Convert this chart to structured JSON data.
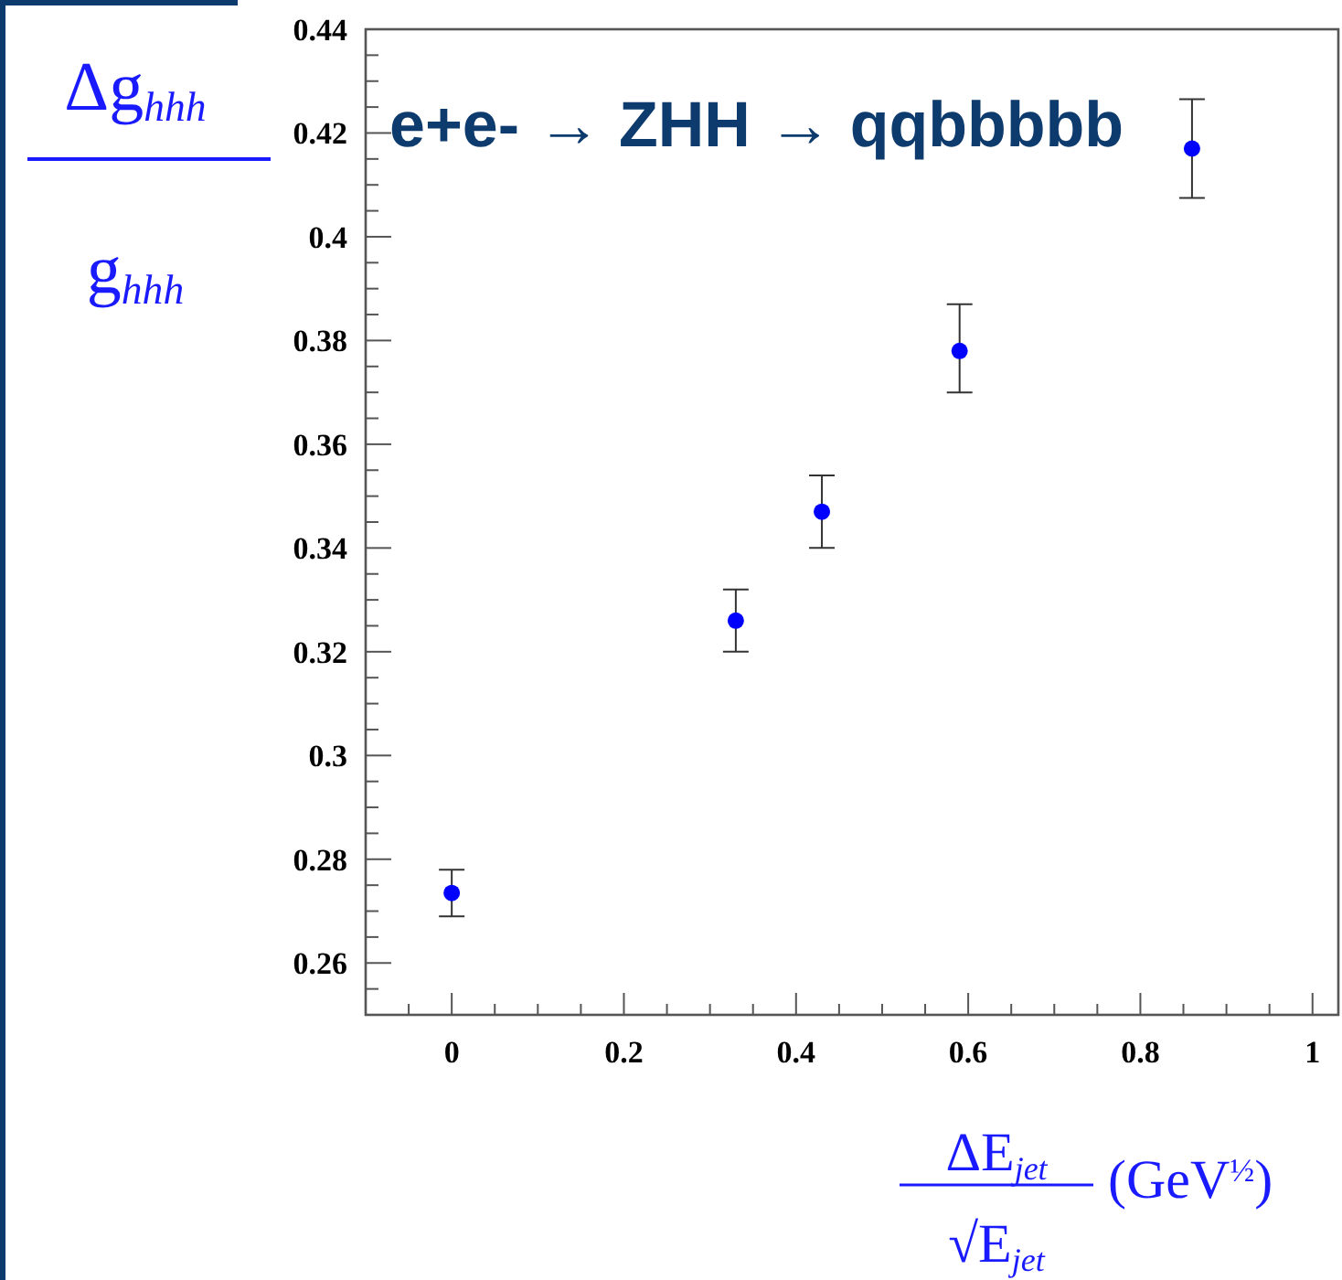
{
  "chart_data": {
    "type": "scatter",
    "title": "e+e- → ZHH → qqbbbbb",
    "xlabel": "ΔE$_{jet}$ √E$_{jet}$ (GeV$^{½}$)",
    "ylabel": "Δg$_{hhh}$ g$_{hhh}$",
    "x": [
      0,
      0.33,
      0.43,
      0.59,
      0.86
    ],
    "series": [
      {
        "color": "#0000ff",
        "values": [
          0.2735,
          0.326,
          0.347,
          0.378,
          0.417
        ],
        "errors": [
          0.0045,
          0.006,
          0.007,
          [
            0.37,
            0.387
          ],
          0.0095
        ]
      }
    ],
    "marker": "circle",
    "xlim": [
      -0.1,
      1.03
    ],
    "ylim": [
      0.25,
      0.44
    ],
    "xticks": [
      {
        "value": -0.05,
        "label": null
      },
      0,
      {
        "value": 0.05,
        "label": null
      },
      {
        "value": 0.1,
        "label": null
      },
      {
        "value": 0.15,
        "label": null
      },
      0.2,
      {
        "value": 0.25,
        "label": null
      },
      {
        "value": 0.3,
        "label": null
      },
      {
        "value": 0.35,
        "label": null
      },
      0.4,
      {
        "value": 0.45,
        "label": null
      },
      {
        "value": 0.5,
        "label": null
      },
      {
        "value": 0.55,
        "label": null
      },
      0.6,
      {
        "value": 0.65,
        "label": null
      },
      {
        "value": 0.7,
        "label": null
      },
      {
        "value": 0.75,
        "label": null
      },
      0.8,
      {
        "value": 0.85,
        "label": null
      },
      {
        "value": 0.9,
        "label": null
      },
      {
        "value": 0.95,
        "label": null
      },
      1
    ],
    "yticks": [
      {
        "value": 0.255,
        "label": null
      },
      0.26,
      {
        "value": 0.265,
        "label": null
      },
      {
        "value": 0.27,
        "label": null
      },
      {
        "value": 0.275,
        "label": null
      },
      0.28,
      {
        "value": 0.285,
        "label": null
      },
      {
        "value": 0.29,
        "label": null
      },
      {
        "value": 0.295,
        "label": null
      },
      0.3,
      {
        "value": 0.305,
        "label": null
      },
      {
        "value": 0.31,
        "label": null
      },
      {
        "value": 0.315,
        "label": null
      },
      0.32,
      {
        "value": 0.325,
        "label": null
      },
      {
        "value": 0.33,
        "label": null
      },
      {
        "value": 0.335,
        "label": null
      },
      0.34,
      {
        "value": 0.345,
        "label": null
      },
      {
        "value": 0.35,
        "label": null
      },
      {
        "value": 0.355,
        "label": null
      },
      0.36,
      {
        "value": 0.365,
        "label": null
      },
      {
        "value": 0.37,
        "label": null
      },
      {
        "value": 0.375,
        "label": null
      },
      0.38,
      {
        "value": 0.385,
        "label": null
      },
      {
        "value": 0.39,
        "label": null
      },
      {
        "value": 0.395,
        "label": null
      },
      0.4,
      {
        "value": 0.405,
        "label": null
      },
      {
        "value": 0.41,
        "label": null
      },
      {
        "value": 0.415,
        "label": null
      },
      0.42,
      {
        "value": 0.425,
        "label": null
      },
      {
        "value": 0.43,
        "label": null
      },
      {
        "value": 0.435,
        "label": null
      },
      0.44
    ],
    "grid": false
  }
}
